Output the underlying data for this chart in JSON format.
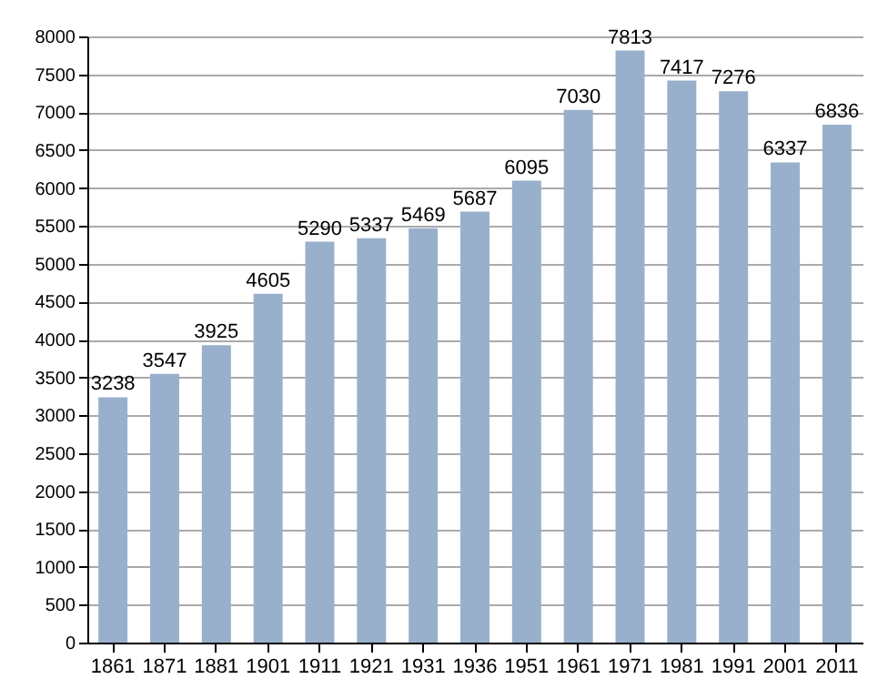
{
  "chart_data": {
    "type": "bar",
    "categories": [
      "1861",
      "1871",
      "1881",
      "1901",
      "1911",
      "1921",
      "1931",
      "1936",
      "1951",
      "1961",
      "1971",
      "1981",
      "1991",
      "2001",
      "2011"
    ],
    "values": [
      3238,
      3547,
      3925,
      4605,
      5290,
      5337,
      5469,
      5687,
      6095,
      7030,
      7813,
      7417,
      7276,
      6337,
      6836
    ],
    "color": "#98b0cc",
    "ylim": [
      0,
      8000
    ],
    "yticks": [
      0,
      500,
      1000,
      1500,
      2000,
      2500,
      3000,
      3500,
      4000,
      4500,
      5000,
      5500,
      6000,
      6500,
      7000,
      7500,
      8000
    ],
    "grid": "y",
    "data_labels": true
  }
}
